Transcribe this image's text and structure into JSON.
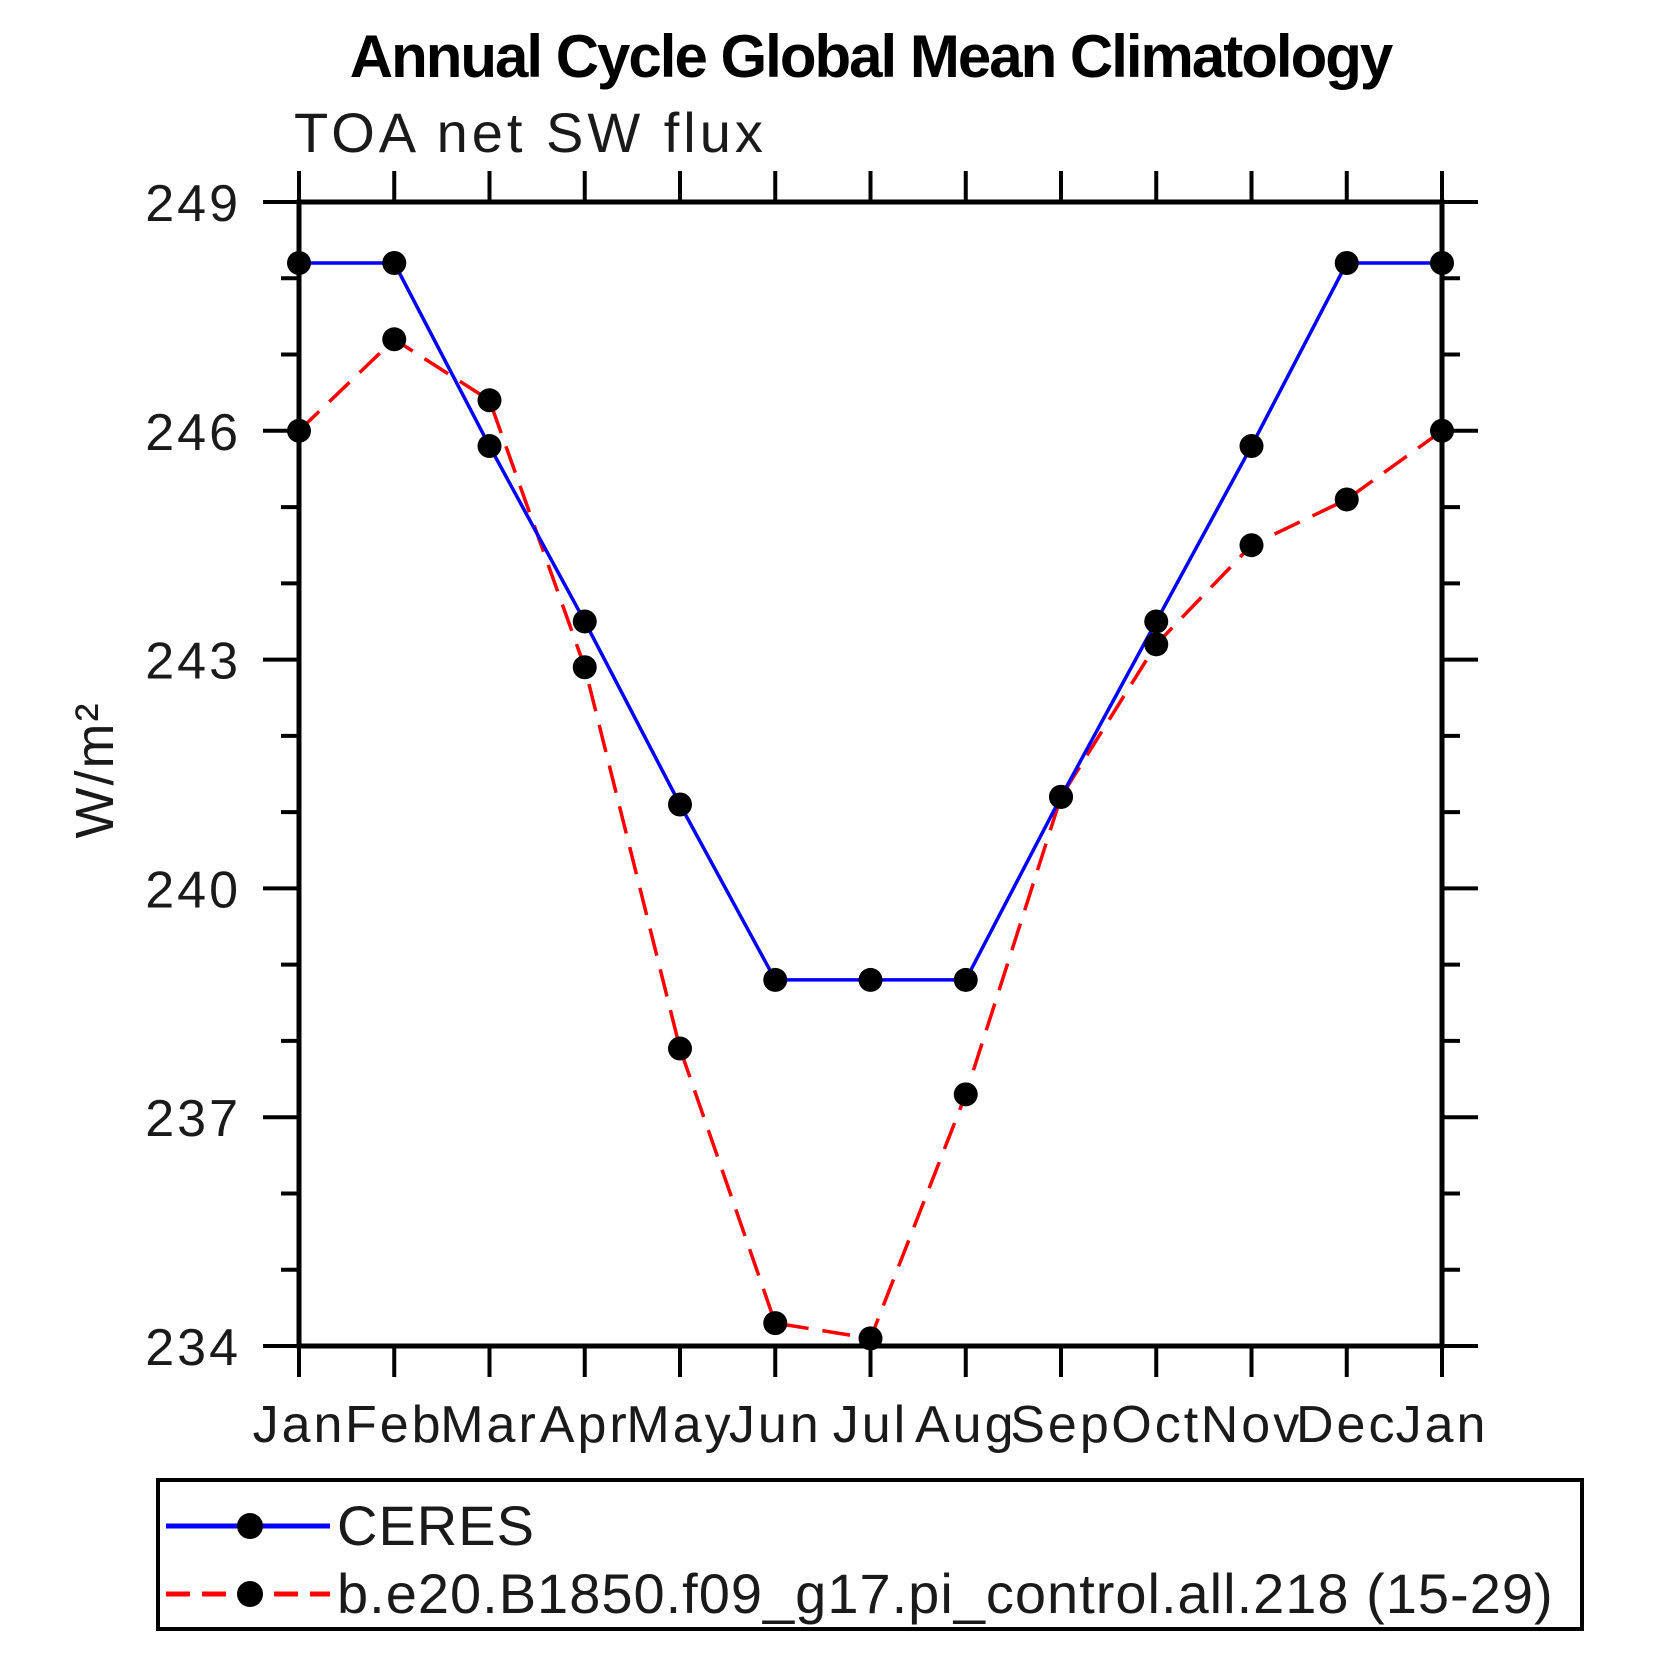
{
  "page": {
    "background": "#ffffff"
  },
  "chart_data": {
    "type": "line",
    "title": "Annual Cycle Global Mean Climatology",
    "subtitle": "TOA net SW flux",
    "ylabel": "W/m²",
    "xlabel": "",
    "categories": [
      "Jan",
      "Feb",
      "Mar",
      "Apr",
      "May",
      "Jun",
      "Jul",
      "Aug",
      "Sep",
      "Oct",
      "Nov",
      "Dec",
      "Jan"
    ],
    "ylim": [
      234,
      249
    ],
    "yticks_major": [
      234,
      237,
      240,
      243,
      246,
      249
    ],
    "ytick_minor_step": 1,
    "grid": false,
    "legend_position": "bottom",
    "axis_color": "#000000",
    "marker_color": "#000000",
    "series": [
      {
        "name": "CERES",
        "color": "#0000ff",
        "style": "solid",
        "marker": "circle",
        "values": [
          248.2,
          248.2,
          245.8,
          243.5,
          241.1,
          238.8,
          238.8,
          238.8,
          241.2,
          243.5,
          245.8,
          248.2,
          248.2
        ]
      },
      {
        "name": "b.e20.B1850.f09_g17.pi_control.all.218 (15-29)",
        "color": "#ff0000",
        "style": "dashed",
        "marker": "circle",
        "values": [
          246.0,
          247.2,
          246.4,
          242.9,
          237.9,
          234.3,
          234.1,
          237.3,
          241.2,
          243.2,
          244.5,
          245.1,
          246.0
        ]
      }
    ]
  }
}
